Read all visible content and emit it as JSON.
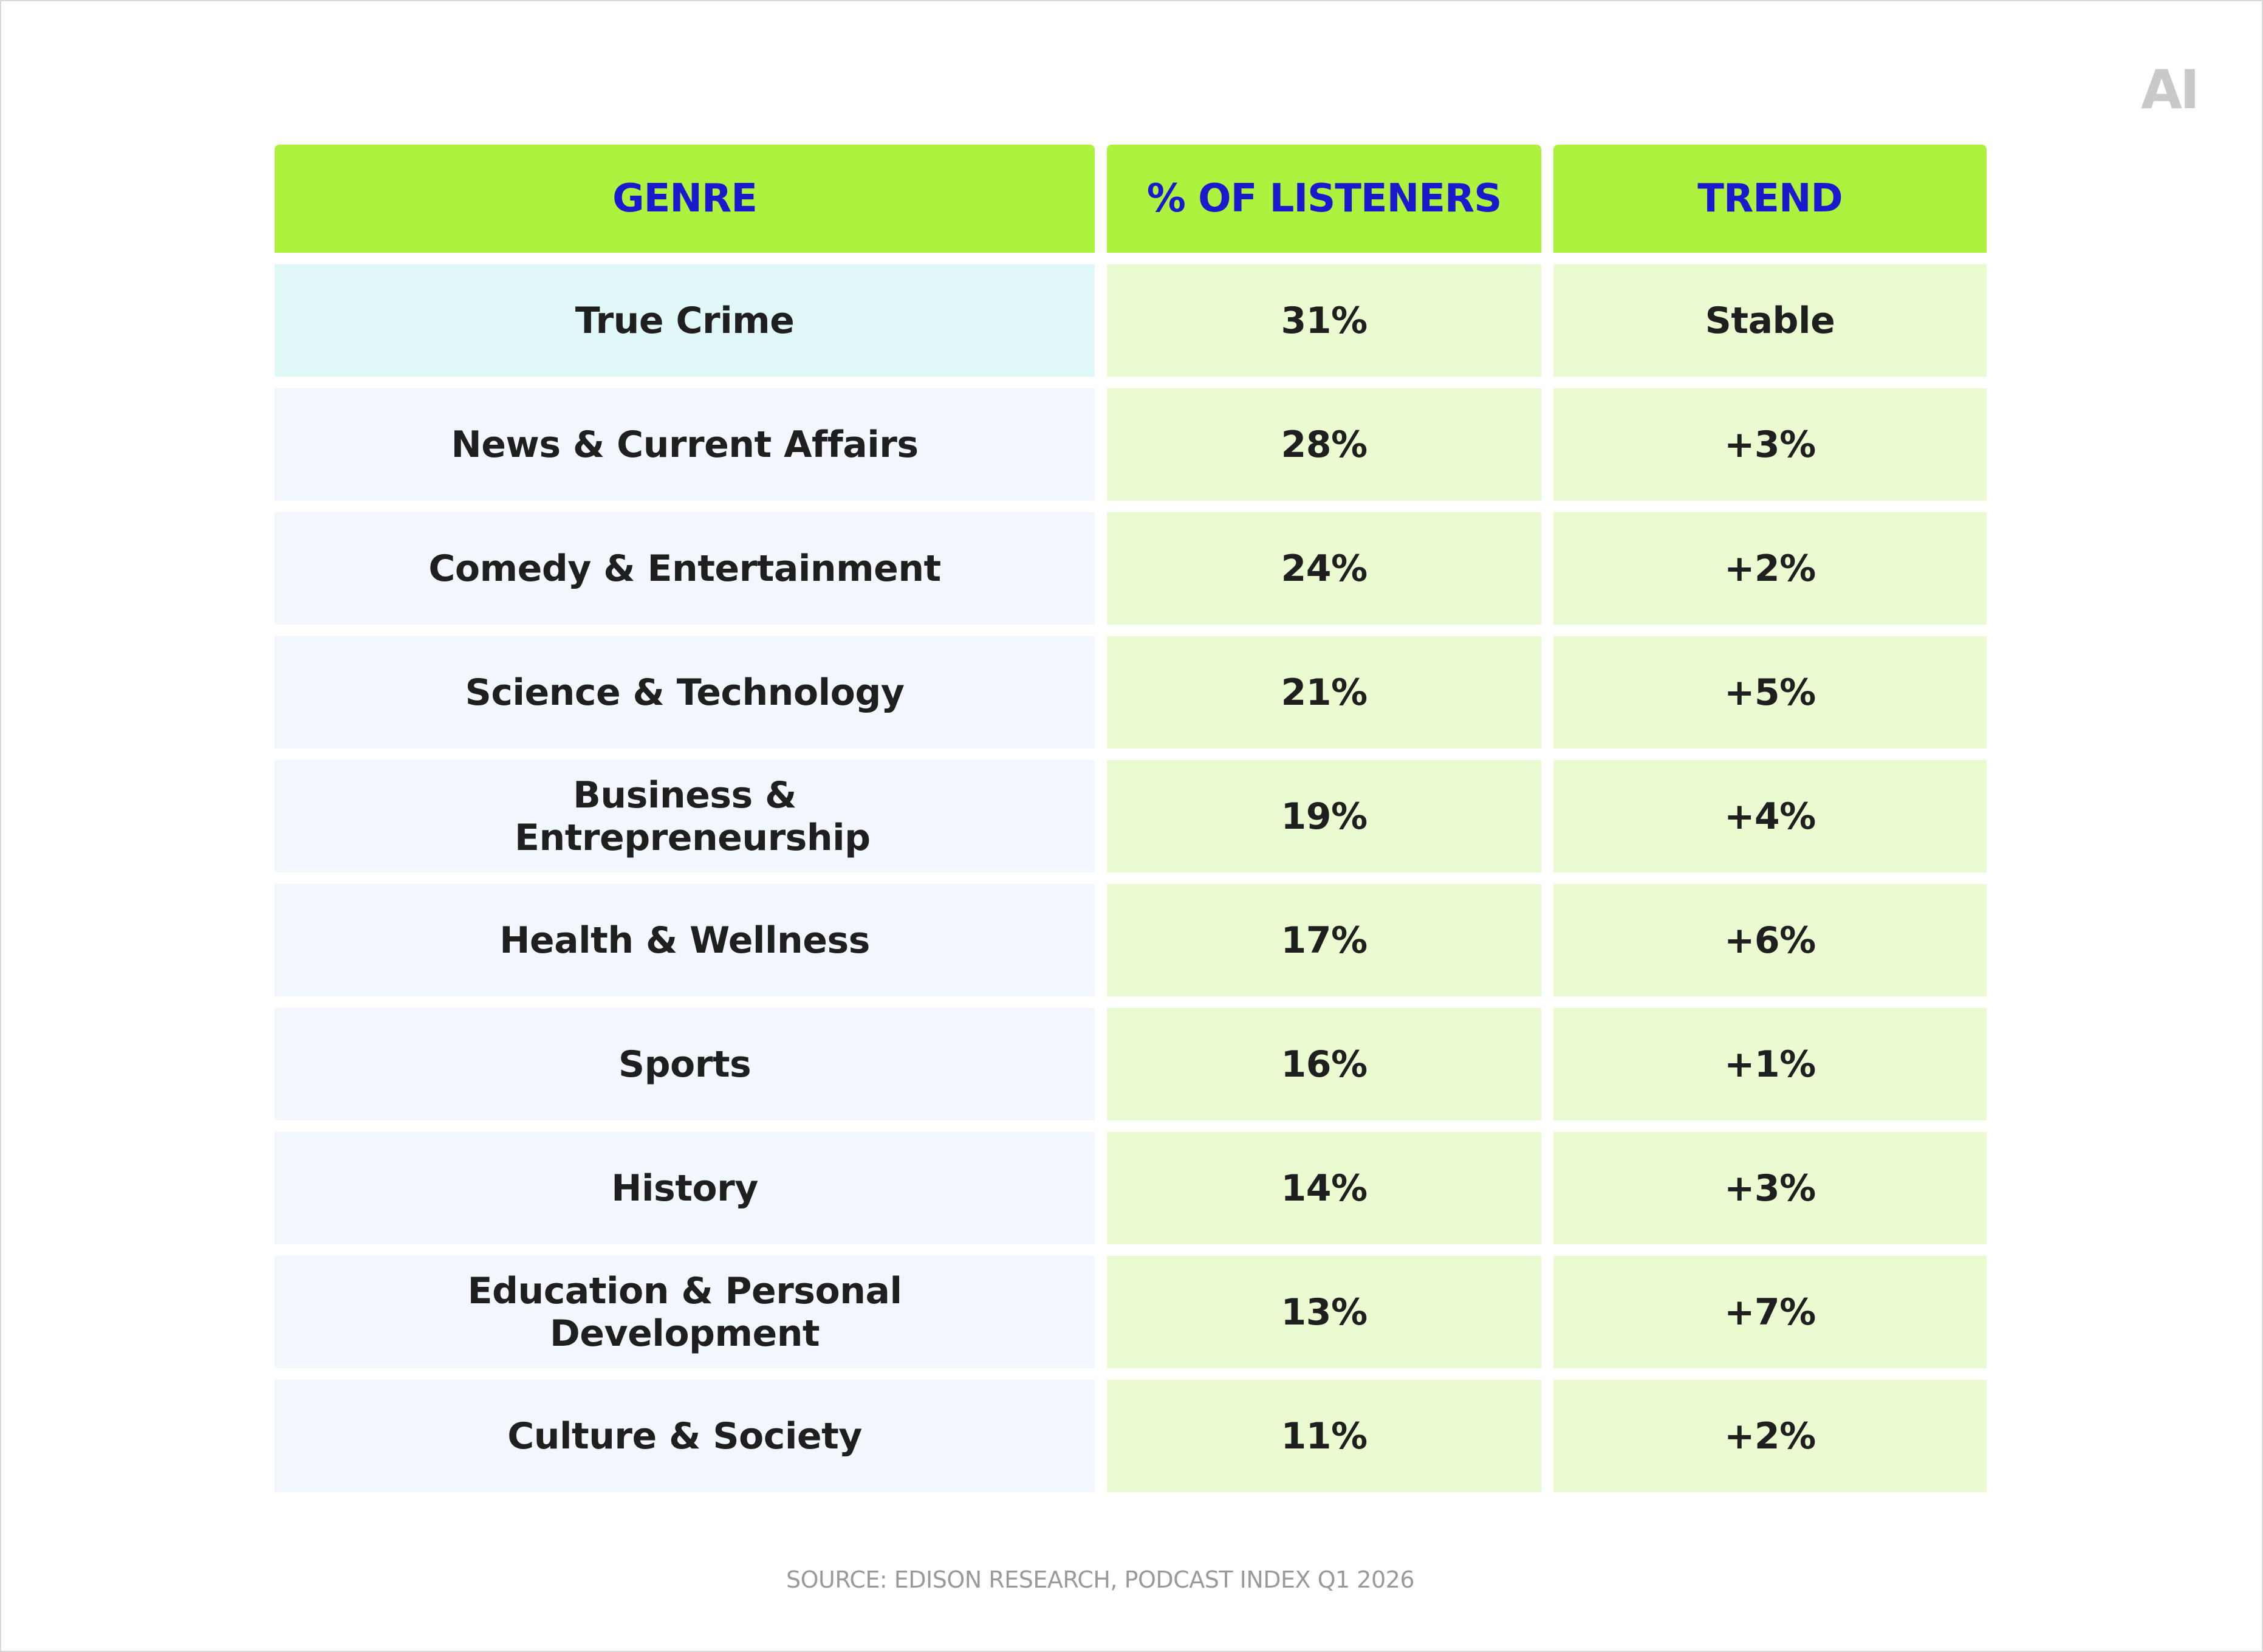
{
  "logo": {
    "text": "AI"
  },
  "table": {
    "headers": [
      "GENRE",
      "% OF LISTENERS",
      "TREND"
    ],
    "rows": [
      {
        "genre": "True Crime",
        "percent": "31%",
        "trend": "Stable"
      },
      {
        "genre": "News & Current Affairs",
        "percent": "28%",
        "trend": "+3%"
      },
      {
        "genre": "Comedy & Entertainment",
        "percent": "24%",
        "trend": "+2%"
      },
      {
        "genre": "Science & Technology",
        "percent": "21%",
        "trend": "+5%"
      },
      {
        "genre": "Business & Entrepreneurship",
        "percent": "19%",
        "trend": "+4%"
      },
      {
        "genre": "Health & Wellness",
        "percent": "17%",
        "trend": "+6%"
      },
      {
        "genre": "Sports",
        "percent": "16%",
        "trend": "+1%"
      },
      {
        "genre": "History",
        "percent": "14%",
        "trend": "+3%"
      },
      {
        "genre": "Education & Personal Development",
        "percent": "13%",
        "trend": "+7%"
      },
      {
        "genre": "Culture & Society",
        "percent": "11%",
        "trend": "+2%"
      }
    ]
  },
  "source": "SOURCE: EDISON RESEARCH, PODCAST INDEX Q1 2026",
  "colors": {
    "header_bg": "#adf23f",
    "header_text": "#1a1acc",
    "genre_bg": "#f2f6fd",
    "genre_highlight_bg": "#e0f8f8",
    "value_bg": "#eafad1",
    "cell_text": "#1f1f1f"
  }
}
